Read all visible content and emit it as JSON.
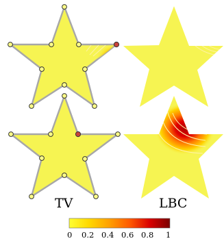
{
  "panel_labels": {
    "tv": "TV",
    "lbc": "LBC"
  },
  "colorbar": {
    "min": 0,
    "max": 1,
    "tick_labels": [
      "0",
      "0.2",
      "0.4",
      "0.6",
      "0.8",
      "1"
    ],
    "colors": [
      "#ffff33",
      "#ffd700",
      "#ff9f00",
      "#ff5a00",
      "#d90000",
      "#7a0000"
    ]
  },
  "colors": {
    "star_fill": "#f6f452",
    "star_outline": "#a7a7a7",
    "handle_fill": "#ffff88",
    "handle_active_fill": "#c8433b",
    "handle_stroke": "#333333",
    "heat_low": "#ffd200",
    "heat_mid": "#ff7a00",
    "heat_high": "#d80000",
    "contour": "#fff2a6"
  },
  "panels": [
    {
      "name": "tv-top",
      "active_handle": "right-tip"
    },
    {
      "name": "lbc-top",
      "active_handle": "right-tip"
    },
    {
      "name": "tv-bottom",
      "active_handle": "right-inner"
    },
    {
      "name": "lbc-bottom",
      "active_handle": "right-inner"
    }
  ]
}
